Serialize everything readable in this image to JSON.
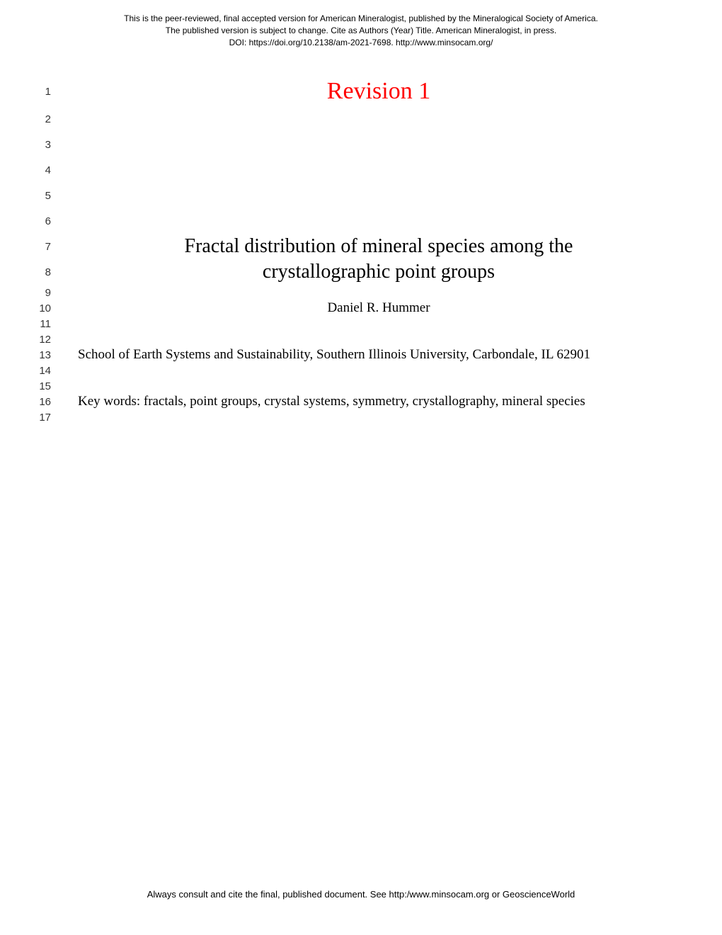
{
  "header": {
    "line1": "This is the peer-reviewed, final accepted version for American Mineralogist, published by the Mineralogical Society of America.",
    "line2": "The published version is subject to change. Cite as Authors (Year) Title. American Mineralogist, in press.",
    "line3": "DOI: https://doi.org/10.2138/am-2021-7698.  http://www.minsocam.org/"
  },
  "lineNumbers": [
    "1",
    "2",
    "3",
    "4",
    "5",
    "6",
    "7",
    "8",
    "9",
    "10",
    "11",
    "12",
    "13",
    "14",
    "15",
    "16",
    "17"
  ],
  "content": {
    "revision": "Revision 1",
    "titleLine1": "Fractal distribution of mineral species among the",
    "titleLine2": "crystallographic point groups",
    "author": "Daniel R. Hummer",
    "affiliation": "School of Earth Systems and Sustainability, Southern Illinois University, Carbondale, IL 62901",
    "keywords": "Key words: fractals, point groups, crystal systems, symmetry, crystallography, mineral species"
  },
  "footer": {
    "text": "Always consult and cite the final, published document. See http:/www.minsocam.org or GeoscienceWorld"
  },
  "styling": {
    "pageWidth": 1020,
    "pageHeight": 1320,
    "backgroundColor": "#ffffff",
    "revisionColor": "#ff0000",
    "textColor": "#000000",
    "headerFontFamily": "Arial",
    "bodyFontFamily": "Times New Roman",
    "headerFontSize": 12,
    "lineNumberFontSize": 15,
    "revisionFontSize": 34,
    "titleFontSize": 28,
    "bodyFontSize": 19,
    "footerFontSize": 13
  }
}
